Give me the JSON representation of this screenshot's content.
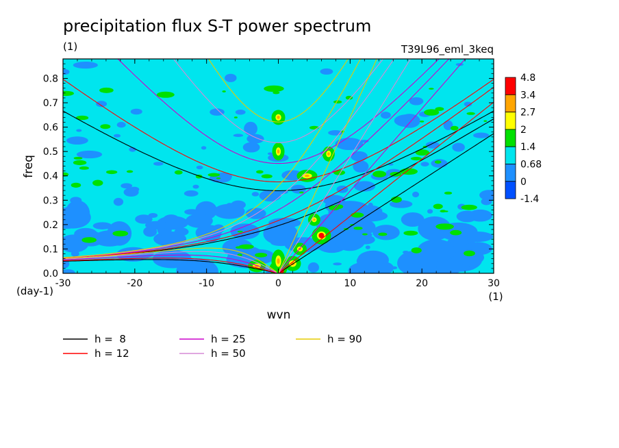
{
  "chart_data": {
    "type": "heatmap",
    "title": "precipitation flux S-T power spectrum",
    "subtitle_left": "(1)",
    "subtitle_right": "T39L96_eml_3keq",
    "xlabel": "wvn",
    "ylabel": "freq",
    "x_unit": "(1)",
    "y_unit": "(day-1)",
    "xlim": [
      -30,
      30
    ],
    "ylim": [
      0,
      0.88
    ],
    "x_ticks": [
      -30,
      -20,
      -10,
      0,
      10,
      20,
      30
    ],
    "x_tick_labels": [
      "-30",
      "-20",
      "-10",
      "0",
      "10",
      "20",
      "30"
    ],
    "y_ticks": [
      0,
      0.1,
      0.2,
      0.3,
      0.4,
      0.5,
      0.6,
      0.7,
      0.8
    ],
    "y_tick_labels": [
      "0.0",
      "0.1",
      "0.2",
      "0.3",
      "0.4",
      "0.5",
      "0.6",
      "0.7",
      "0.8"
    ],
    "colorbar": {
      "levels": [
        "4.8",
        "3.4",
        "2.7",
        "2",
        "1.4",
        "0.68",
        "0",
        "-1.4"
      ],
      "colors": [
        "#ff0000",
        "#ffa500",
        "#ffff00",
        "#00e000",
        "#00e5ee",
        "#1e90ff",
        "#0050ff"
      ]
    },
    "background_color": "#00e5ee",
    "dispersion_curves": [
      {
        "label": "h =  8",
        "h": 8,
        "color": "#000000"
      },
      {
        "label": "h = 12",
        "h": 12,
        "color": "#ff0000"
      },
      {
        "label": "h = 25",
        "h": 25,
        "color": "#cc00cc"
      },
      {
        "label": "h = 50",
        "h": 50,
        "color": "#d68ad6"
      },
      {
        "label": "h = 90",
        "h": 90,
        "color": "#e6cc00"
      }
    ]
  }
}
